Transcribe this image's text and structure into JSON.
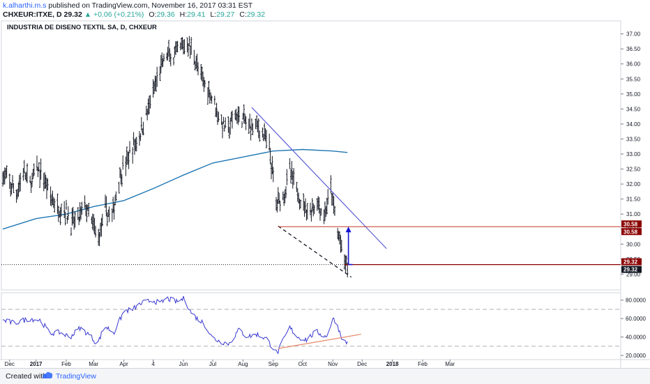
{
  "header": {
    "author": "k.alharthi.m.s",
    "published": "published on TradingView.com, November 16, 2017 03:31 EST",
    "symbol": "CHXEUR:ITXE, D",
    "last": "29.32",
    "change": "▲ +0.06 (+0.21%)",
    "o_label": "O:",
    "o_value": "29.36",
    "h_label": "H:",
    "h_value": "29.41",
    "l_label": "L:",
    "l_value": "29.27",
    "c_label": "C:",
    "c_value": "29.32"
  },
  "footer": {
    "made_with": "Created with",
    "brand": "TradingView"
  },
  "colors": {
    "price_bar": "#131722",
    "ma": "#1f77b4",
    "trendline": "#5b5bd6",
    "rsi": "#3838d0",
    "rsi_trend": "#e88a6a",
    "level_red": "#8b0000",
    "arrow": "#1414d2",
    "grid_dash": "#b0b0b0"
  },
  "chart_data": [
    {
      "type": "ohlc",
      "title": "INDUSTRIA DE DISENO TEXTIL SA, D, CHXEUR",
      "x_axis_labels": [
        "Dec",
        "2017",
        "Feb",
        "Mar",
        "Apr",
        "4",
        "Jun",
        "Jul",
        "Aug",
        "Sep",
        "Oct",
        "Nov",
        "Dec",
        "2018",
        "Feb",
        "Mar"
      ],
      "y_ticks": [
        "37.00",
        "36.50",
        "36.00",
        "35.50",
        "35.00",
        "34.50",
        "34.00",
        "33.50",
        "33.00",
        "32.50",
        "32.00",
        "31.50",
        "31.00",
        "30.50",
        "30.00",
        "29.50",
        "29.00"
      ],
      "ylim": [
        28.8,
        37.2
      ],
      "price_path": [
        [
          "2016-11-28",
          32.3
        ],
        [
          "2016-12-05",
          32.0
        ],
        [
          "2016-12-12",
          31.7
        ],
        [
          "2016-12-19",
          32.4
        ],
        [
          "2016-12-26",
          32.0
        ],
        [
          "2017-01-02",
          32.5
        ],
        [
          "2017-01-09",
          32.2
        ],
        [
          "2017-01-16",
          31.6
        ],
        [
          "2017-01-23",
          31.2
        ],
        [
          "2017-01-30",
          31.2
        ],
        [
          "2017-02-06",
          30.7
        ],
        [
          "2017-02-13",
          30.8
        ],
        [
          "2017-02-20",
          31.3
        ],
        [
          "2017-02-27",
          30.7
        ],
        [
          "2017-03-06",
          30.2
        ],
        [
          "2017-03-13",
          31.1
        ],
        [
          "2017-03-20",
          30.9
        ],
        [
          "2017-03-27",
          32.2
        ],
        [
          "2017-04-03",
          32.7
        ],
        [
          "2017-04-10",
          33.2
        ],
        [
          "2017-04-17",
          33.6
        ],
        [
          "2017-04-24",
          34.3
        ],
        [
          "2017-05-01",
          35.0
        ],
        [
          "2017-05-08",
          35.8
        ],
        [
          "2017-05-15",
          36.3
        ],
        [
          "2017-05-22",
          36.2
        ],
        [
          "2017-05-29",
          36.5
        ],
        [
          "2017-06-05",
          36.7
        ],
        [
          "2017-06-12",
          36.3
        ],
        [
          "2017-06-19",
          35.5
        ],
        [
          "2017-06-26",
          35.2
        ],
        [
          "2017-07-03",
          34.7
        ],
        [
          "2017-07-10",
          34.0
        ],
        [
          "2017-07-17",
          33.8
        ],
        [
          "2017-07-24",
          34.3
        ],
        [
          "2017-07-31",
          34.2
        ],
        [
          "2017-08-07",
          33.9
        ],
        [
          "2017-08-14",
          34.0
        ],
        [
          "2017-08-21",
          33.7
        ],
        [
          "2017-08-28",
          33.2
        ],
        [
          "2017-09-04",
          31.4
        ],
        [
          "2017-09-11",
          31.6
        ],
        [
          "2017-09-18",
          32.4
        ],
        [
          "2017-09-25",
          31.8
        ],
        [
          "2017-10-02",
          31.3
        ],
        [
          "2017-10-09",
          31.1
        ],
        [
          "2017-10-16",
          31.4
        ],
        [
          "2017-10-23",
          30.9
        ],
        [
          "2017-10-30",
          31.8
        ],
        [
          "2017-11-06",
          30.4
        ],
        [
          "2017-11-13",
          29.4
        ],
        [
          "2017-11-16",
          29.3
        ]
      ],
      "moving_average": [
        [
          "2016-11-28",
          30.5
        ],
        [
          "2017-01-01",
          30.85
        ],
        [
          "2017-02-01",
          31.0
        ],
        [
          "2017-03-01",
          31.25
        ],
        [
          "2017-04-01",
          31.45
        ],
        [
          "2017-05-01",
          31.85
        ],
        [
          "2017-06-01",
          32.3
        ],
        [
          "2017-07-01",
          32.7
        ],
        [
          "2017-08-01",
          32.9
        ],
        [
          "2017-09-01",
          33.1
        ],
        [
          "2017-10-01",
          33.15
        ],
        [
          "2017-11-01",
          33.1
        ],
        [
          "2017-11-16",
          33.05
        ]
      ],
      "trendline_upper": [
        [
          "2017-08-10",
          34.55
        ],
        [
          "2017-12-26",
          29.85
        ]
      ],
      "trendline_lower_dashed": [
        [
          "2017-09-06",
          30.6
        ],
        [
          "2017-11-20",
          28.9
        ]
      ],
      "level_upper": {
        "value": 30.58,
        "from": "2017-09-06",
        "label": "30.58"
      },
      "level_upper_2": {
        "label": "30.58"
      },
      "level_lower": {
        "value": 29.32,
        "from": "2017-11-13",
        "label": "29.32"
      },
      "level_lower_2": {
        "label": "29.32"
      },
      "arrow": {
        "date": "2017-11-17",
        "from": 29.32,
        "to": 30.58
      },
      "last_price_line": 29.32
    },
    {
      "type": "line",
      "indicator": "RSI",
      "y_ticks": [
        "80.0000",
        "60.0000",
        "40.0000",
        "20.0000"
      ],
      "ylim": [
        17,
        85
      ],
      "upper_band": 70,
      "lower_band": 30,
      "rsi_path": [
        [
          "2016-11-28",
          58
        ],
        [
          "2016-12-10",
          55
        ],
        [
          "2016-12-25",
          60
        ],
        [
          "2017-01-06",
          58
        ],
        [
          "2017-01-15",
          44
        ],
        [
          "2017-01-25",
          45
        ],
        [
          "2017-02-05",
          40
        ],
        [
          "2017-02-15",
          50
        ],
        [
          "2017-02-25",
          42
        ],
        [
          "2017-03-05",
          32
        ],
        [
          "2017-03-12",
          52
        ],
        [
          "2017-03-22",
          45
        ],
        [
          "2017-04-01",
          68
        ],
        [
          "2017-04-10",
          70
        ],
        [
          "2017-04-20",
          77
        ],
        [
          "2017-05-01",
          80
        ],
        [
          "2017-05-08",
          76
        ],
        [
          "2017-05-15",
          82
        ],
        [
          "2017-05-25",
          78
        ],
        [
          "2017-06-02",
          82
        ],
        [
          "2017-06-08",
          68
        ],
        [
          "2017-06-15",
          60
        ],
        [
          "2017-06-22",
          55
        ],
        [
          "2017-06-30",
          40
        ],
        [
          "2017-07-08",
          35
        ],
        [
          "2017-07-18",
          33
        ],
        [
          "2017-07-28",
          48
        ],
        [
          "2017-08-05",
          40
        ],
        [
          "2017-08-15",
          43
        ],
        [
          "2017-08-25",
          38
        ],
        [
          "2017-09-05",
          22
        ],
        [
          "2017-09-12",
          38
        ],
        [
          "2017-09-18",
          50
        ],
        [
          "2017-09-26",
          40
        ],
        [
          "2017-10-05",
          37
        ],
        [
          "2017-10-15",
          46
        ],
        [
          "2017-10-25",
          40
        ],
        [
          "2017-11-02",
          61
        ],
        [
          "2017-11-08",
          46
        ],
        [
          "2017-11-12",
          35
        ],
        [
          "2017-11-16",
          34
        ]
      ],
      "rsi_trendline": [
        [
          "2017-09-06",
          27.5
        ],
        [
          "2017-11-30",
          43
        ]
      ]
    }
  ]
}
